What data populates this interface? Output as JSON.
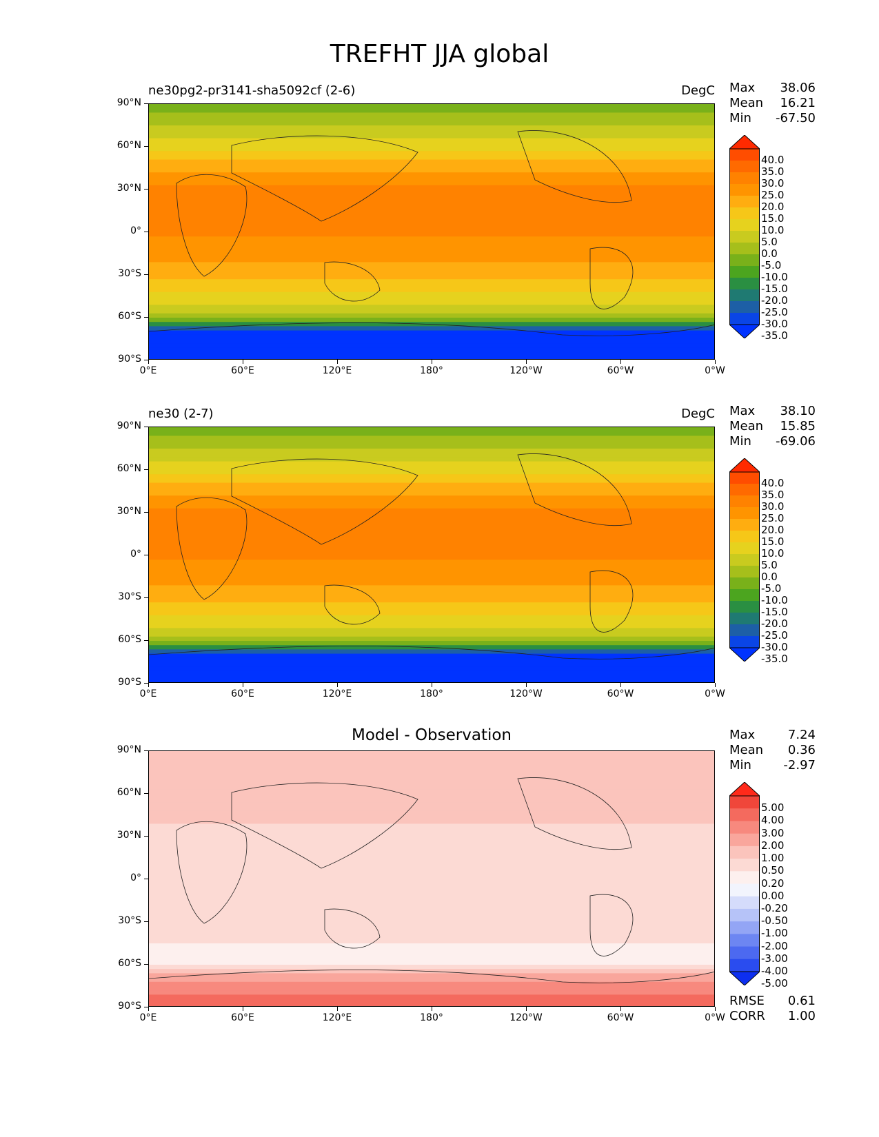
{
  "title": "TREFHT JJA global",
  "x_tick_labels": [
    "0°E",
    "60°E",
    "120°E",
    "180°",
    "120°W",
    "60°W",
    "0°W"
  ],
  "y_tick_labels": [
    "90°N",
    "60°N",
    "30°N",
    "0°",
    "30°S",
    "60°S",
    "90°S"
  ],
  "chart_data": [
    {
      "type": "heatmap",
      "title": "ne30pg2-pr3141-sha5092cf (2-6)",
      "units": "DegC",
      "stats": {
        "max_label": "Max",
        "max": "38.06",
        "mean_label": "Mean",
        "mean": "16.21",
        "min_label": "Min",
        "min": "-67.50"
      },
      "colorbar_levels": [
        "40.0",
        "35.0",
        "30.0",
        "25.0",
        "20.0",
        "15.0",
        "10.0",
        "5.0",
        "0.0",
        "-5.0",
        "-10.0",
        "-15.0",
        "-20.0",
        "-25.0",
        "-30.0",
        "-35.0"
      ],
      "colorbar_colors": [
        "#ff2a00",
        "#ff4d00",
        "#ff6a00",
        "#ff8200",
        "#ff9400",
        "#ffad10",
        "#f6c718",
        "#e6d21e",
        "#c9cb1f",
        "#a6bf1b",
        "#79b11a",
        "#4ca51f",
        "#2a8f42",
        "#1f7a72",
        "#1d5fa6",
        "#0a45e6",
        "#0033ff"
      ],
      "lat_profile_degC": [
        [
          90,
          -10
        ],
        [
          75,
          0
        ],
        [
          60,
          8
        ],
        [
          45,
          18
        ],
        [
          30,
          26
        ],
        [
          15,
          27
        ],
        [
          0,
          26
        ],
        [
          -15,
          22
        ],
        [
          -30,
          17
        ],
        [
          -45,
          8
        ],
        [
          -60,
          -2
        ],
        [
          -70,
          -35
        ],
        [
          -90,
          -55
        ]
      ],
      "xlim": [
        0,
        360
      ],
      "ylim": [
        -90,
        90
      ]
    },
    {
      "type": "heatmap",
      "title": "ne30 (2-7)",
      "units": "DegC",
      "stats": {
        "max_label": "Max",
        "max": "38.10",
        "mean_label": "Mean",
        "mean": "15.85",
        "min_label": "Min",
        "min": "-69.06"
      },
      "colorbar_levels": [
        "40.0",
        "35.0",
        "30.0",
        "25.0",
        "20.0",
        "15.0",
        "10.0",
        "5.0",
        "0.0",
        "-5.0",
        "-10.0",
        "-15.0",
        "-20.0",
        "-25.0",
        "-30.0",
        "-35.0"
      ],
      "colorbar_colors": [
        "#ff2a00",
        "#ff4d00",
        "#ff6a00",
        "#ff8200",
        "#ff9400",
        "#ffad10",
        "#f6c718",
        "#e6d21e",
        "#c9cb1f",
        "#a6bf1b",
        "#79b11a",
        "#4ca51f",
        "#2a8f42",
        "#1f7a72",
        "#1d5fa6",
        "#0a45e6",
        "#0033ff"
      ],
      "lat_profile_degC": [
        [
          90,
          -10
        ],
        [
          75,
          0
        ],
        [
          60,
          8
        ],
        [
          45,
          18
        ],
        [
          30,
          26
        ],
        [
          15,
          27
        ],
        [
          0,
          26
        ],
        [
          -15,
          22
        ],
        [
          -30,
          17
        ],
        [
          -45,
          8
        ],
        [
          -60,
          -2
        ],
        [
          -70,
          -36
        ],
        [
          -90,
          -56
        ]
      ],
      "xlim": [
        0,
        360
      ],
      "ylim": [
        -90,
        90
      ]
    },
    {
      "type": "heatmap",
      "title": "Model - Observation",
      "units": "",
      "stats": {
        "max_label": "Max",
        "max": "7.24",
        "mean_label": "Mean",
        "mean": "0.36",
        "min_label": "Min",
        "min": "-2.97"
      },
      "bottom_stats": {
        "rmse_label": "RMSE",
        "rmse": "0.61",
        "corr_label": "CORR",
        "corr": "1.00"
      },
      "colorbar_levels": [
        "5.00",
        "4.00",
        "3.00",
        "2.00",
        "1.00",
        "0.50",
        "0.20",
        "0.00",
        "-0.20",
        "-0.50",
        "-1.00",
        "-2.00",
        "-3.00",
        "-4.00",
        "-5.00"
      ],
      "colorbar_colors": [
        "#ff2a1a",
        "#f0463a",
        "#f46a5e",
        "#f7897e",
        "#f9a69c",
        "#fbc4bc",
        "#fcdad4",
        "#fdf0ee",
        "#f2f4fd",
        "#d5dcfb",
        "#b6c3f8",
        "#93a5f5",
        "#6d86f2",
        "#4c69f0",
        "#2a4cef",
        "#0d2ff0"
      ],
      "lat_profile_diff": [
        [
          90,
          0.8
        ],
        [
          60,
          0.7
        ],
        [
          30,
          0.4
        ],
        [
          0,
          0.2
        ],
        [
          -30,
          0.3
        ],
        [
          -60,
          0.1
        ],
        [
          -75,
          2.5
        ],
        [
          -90,
          3.5
        ]
      ],
      "xlim": [
        0,
        360
      ],
      "ylim": [
        -90,
        90
      ]
    }
  ]
}
